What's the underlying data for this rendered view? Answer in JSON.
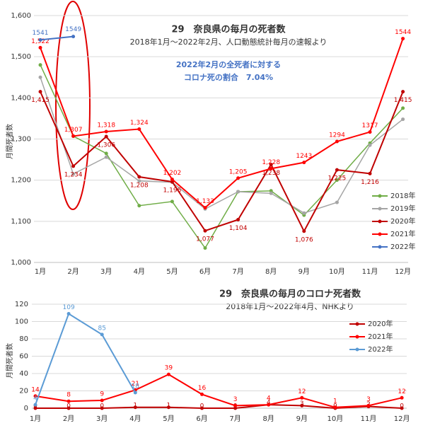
{
  "chart_data": [
    {
      "type": "line",
      "title": "29　奈良県の毎月の死者数",
      "subtitle": "2018年1月～2022年2月、人口動態統計毎月の速報より",
      "annotations": [
        "2022年2月の全死者に対する",
        "コロナ死の割合　7.04%"
      ],
      "y_label": "月間死者数",
      "categories": [
        "1月",
        "2月",
        "3月",
        "4月",
        "5月",
        "6月",
        "7月",
        "8月",
        "9月",
        "10月",
        "11月",
        "12月"
      ],
      "ylim": [
        1000,
        1600
      ],
      "yticks": [
        {
          "value": 1000,
          "label": "1,000"
        },
        {
          "value": 1100,
          "label": "1,100"
        },
        {
          "value": 1200,
          "label": "1,200"
        },
        {
          "value": 1300,
          "label": "1,300"
        },
        {
          "value": 1400,
          "label": "1,400"
        },
        {
          "value": 1500,
          "label": "1,500"
        },
        {
          "value": 1600,
          "label": "1,600"
        }
      ],
      "grid": true,
      "legend": "right",
      "series": [
        {
          "name": "2018年",
          "color": "#70ad47",
          "values": [
            1480,
            1307,
            1265,
            1138,
            1148,
            1035,
            1172,
            1174,
            1115,
            1200,
            1290,
            1375
          ]
        },
        {
          "name": "2019年",
          "color": "#a5a5a5",
          "values": [
            1450,
            1215,
            1256,
            1198,
            1195,
            1130,
            1172,
            1168,
            1120,
            1146,
            1285,
            1348
          ]
        },
        {
          "name": "2020年",
          "color": "#c00000",
          "data_labels": true,
          "values": [
            1415,
            1234,
            1306,
            1208,
            1196,
            1077,
            1104,
            1238,
            1076,
            1225,
            1216,
            1415
          ],
          "value_labels": [
            "1,415",
            "1,234",
            "1,306",
            "1,208",
            "1,196",
            "1,077",
            "1,104",
            "1,238",
            "1,076",
            "1,225",
            "1,216",
            "1,415"
          ]
        },
        {
          "name": "2021年",
          "color": "#ff0000",
          "data_labels": true,
          "values": [
            1522,
            1307,
            1318,
            1324,
            1202,
            1133,
            1205,
            1228,
            1243,
            1294,
            1317,
            1544
          ],
          "value_labels": [
            "1,522",
            "1,307",
            "1,318",
            "1,324",
            "1,202",
            "1,133",
            "1,205",
            "1,228",
            "1243",
            "1294",
            "1317",
            "1544"
          ]
        },
        {
          "name": "2022年",
          "color": "#4472c4",
          "data_labels": true,
          "values": [
            1541,
            1549,
            null,
            null,
            null,
            null,
            null,
            null,
            null,
            null,
            null,
            null
          ]
        }
      ]
    },
    {
      "type": "line",
      "title": "29　奈良県の毎月のコロナ死者数",
      "subtitle": "2018年1月～2022年4月、NHKより",
      "y_label": "月間死者数",
      "categories": [
        "1月",
        "2月",
        "3月",
        "4月",
        "5月",
        "6月",
        "7月",
        "8月",
        "9月",
        "10月",
        "11月",
        "12月"
      ],
      "ylim": [
        0,
        120
      ],
      "yticks": [
        0,
        20,
        40,
        60,
        80,
        100,
        120
      ],
      "grid": true,
      "legend": "right",
      "series": [
        {
          "name": "2020年",
          "color": "#c00000",
          "data_labels": true,
          "values": [
            0,
            0,
            0,
            1,
            1,
            0,
            0,
            4,
            3,
            0,
            2,
            0
          ]
        },
        {
          "name": "2021年",
          "color": "#ff0000",
          "data_labels": true,
          "values": [
            14,
            8,
            9,
            21,
            39,
            16,
            3,
            4,
            12,
            1,
            3,
            12
          ]
        },
        {
          "name": "2022年",
          "color": "#5b9bd5",
          "data_labels": true,
          "values": [
            4,
            109,
            85,
            18,
            null,
            null,
            null,
            null,
            null,
            null,
            null,
            null
          ]
        }
      ]
    }
  ]
}
